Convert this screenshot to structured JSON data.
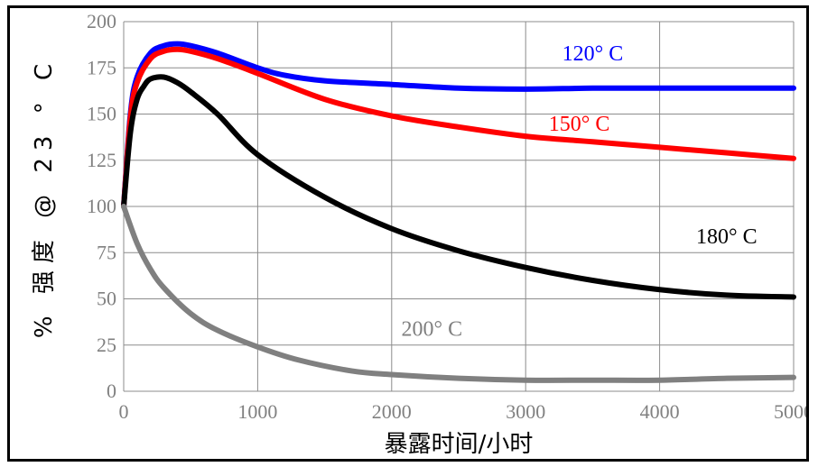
{
  "chart_data": {
    "type": "line",
    "xlabel": "暴露时间/小时",
    "ylabel": "% 强度 @ 23 ° C",
    "xlim": [
      0,
      5000
    ],
    "ylim": [
      0,
      200
    ],
    "xticks": [
      0,
      1000,
      2000,
      3000,
      4000,
      5000
    ],
    "yticks": [
      0,
      25,
      50,
      75,
      100,
      125,
      150,
      175,
      200
    ],
    "grid": true,
    "series": [
      {
        "name": "120° C",
        "label_text": "120° C",
        "color": "#0000ff",
        "x": [
          0,
          50,
          100,
          200,
          300,
          400,
          500,
          700,
          1000,
          1200,
          1500,
          2000,
          2500,
          3000,
          3500,
          4000,
          4500,
          5000
        ],
        "y": [
          100,
          150,
          170,
          183,
          187,
          188,
          187,
          183,
          175,
          171,
          168,
          166,
          164,
          163.5,
          164,
          164,
          164,
          164
        ]
      },
      {
        "name": "150° C",
        "label_text": "150° C",
        "color": "#ff0000",
        "x": [
          0,
          50,
          100,
          200,
          300,
          400,
          500,
          700,
          1000,
          1500,
          2000,
          2500,
          3000,
          3500,
          4000,
          4500,
          5000
        ],
        "y": [
          100,
          148,
          167,
          180,
          184,
          185,
          184,
          180,
          172,
          158,
          149,
          143,
          138,
          135,
          132,
          129,
          126
        ]
      },
      {
        "name": "180° C",
        "label_text": "180° C",
        "color": "#000000",
        "x": [
          0,
          50,
          100,
          150,
          200,
          300,
          400,
          500,
          700,
          1000,
          1500,
          2000,
          2500,
          3000,
          3500,
          4000,
          4500,
          5000
        ],
        "y": [
          100,
          140,
          158,
          165,
          169,
          170,
          167,
          162,
          150,
          128,
          105,
          88,
          76,
          67,
          60,
          55,
          52,
          51
        ]
      },
      {
        "name": "200° C",
        "label_text": "200° C",
        "color": "#808080",
        "x": [
          0,
          100,
          200,
          300,
          500,
          700,
          1000,
          1300,
          1700,
          2000,
          2500,
          3000,
          3500,
          4000,
          4500,
          5000
        ],
        "y": [
          100,
          80,
          66,
          56,
          42,
          33,
          24,
          17,
          11,
          9,
          7,
          6,
          6,
          6,
          7,
          7.5
        ]
      }
    ]
  }
}
